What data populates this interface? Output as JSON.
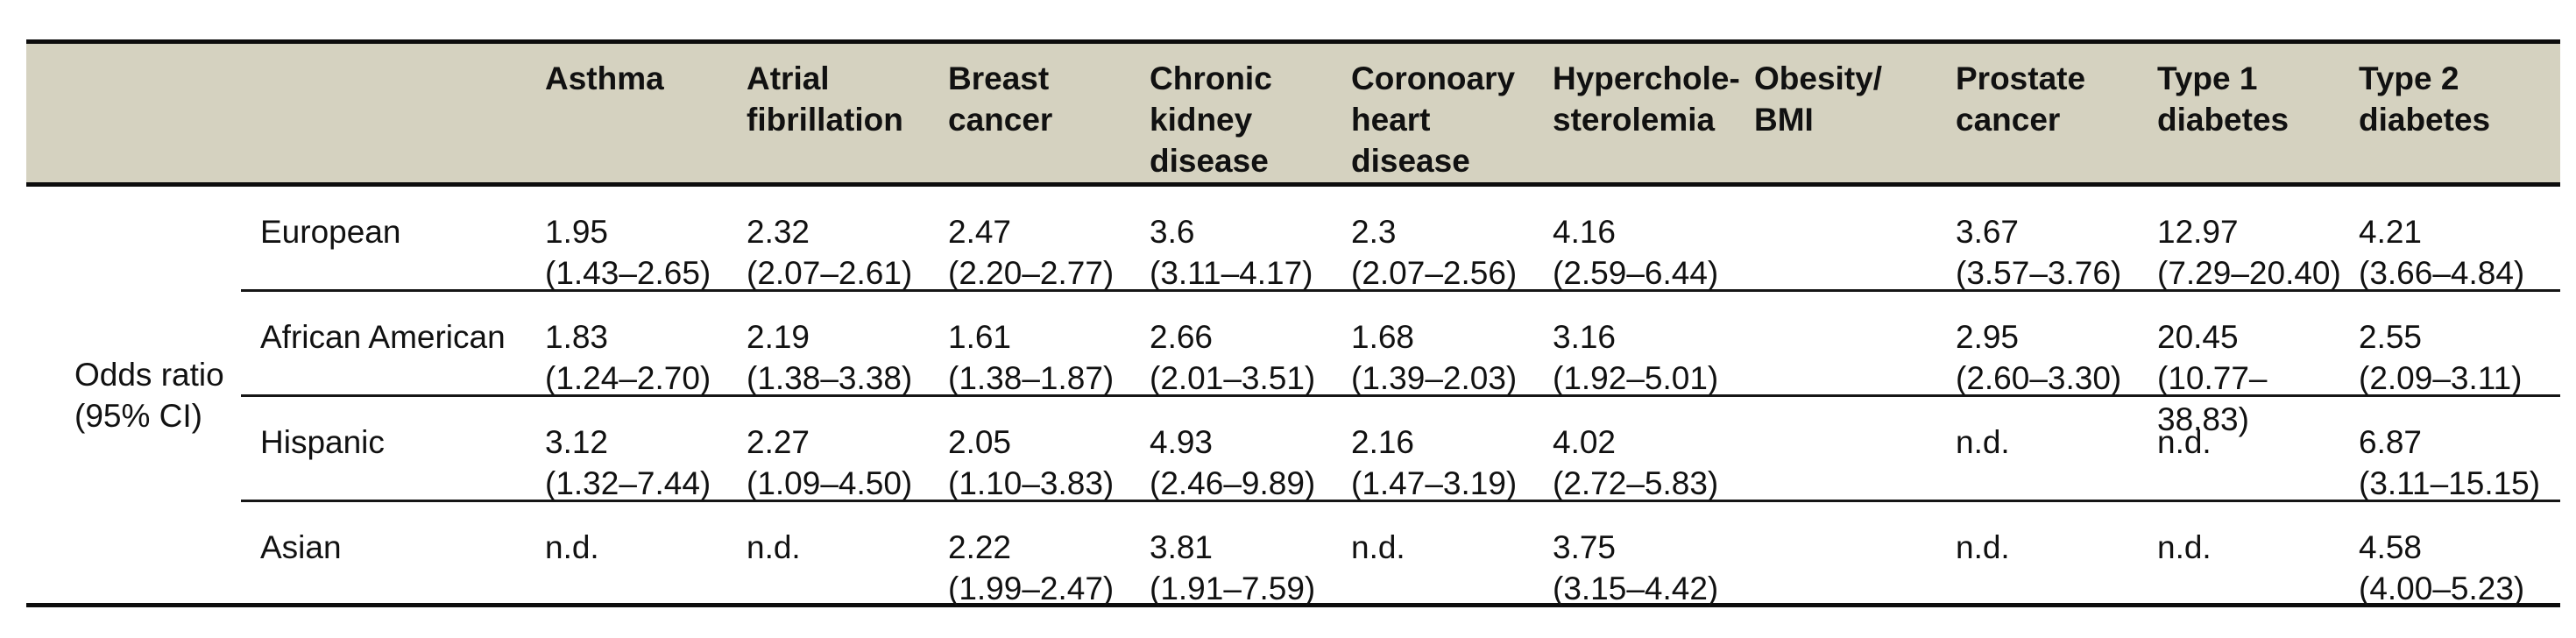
{
  "table": {
    "header_bg": "#d5d2c0",
    "rule_color": "#0d0d0d",
    "stat_label": "Odds ratio\n(95% CI)",
    "columns": [
      {
        "label": "Asthma"
      },
      {
        "label": "Atrial\nfibrillation"
      },
      {
        "label": "Breast\ncancer"
      },
      {
        "label": "Chronic\nkidney\ndisease"
      },
      {
        "label": "Coronoary\nheart\ndisease"
      },
      {
        "label": "Hyperchole-\nsterolemia"
      },
      {
        "label": "Obesity/\nBMI"
      },
      {
        "label": "Prostate\ncancer"
      },
      {
        "label": "Type 1\ndiabetes"
      },
      {
        "label": "Type 2\ndiabetes"
      }
    ],
    "rows": [
      {
        "group": "European",
        "cells": [
          {
            "or": "1.95",
            "ci": "(1.43–2.65)"
          },
          {
            "or": "2.32",
            "ci": "(2.07–2.61)"
          },
          {
            "or": "2.47",
            "ci": "(2.20–2.77)"
          },
          {
            "or": "3.6",
            "ci": "(3.11–4.17)"
          },
          {
            "or": "2.3",
            "ci": "(2.07–2.56)"
          },
          {
            "or": "4.16",
            "ci": "(2.59–6.44)"
          },
          {
            "or": "",
            "ci": ""
          },
          {
            "or": "3.67",
            "ci": "(3.57–3.76)"
          },
          {
            "or": "12.97",
            "ci": "(7.29–20.40)"
          },
          {
            "or": "4.21",
            "ci": "(3.66–4.84)"
          }
        ]
      },
      {
        "group": "African American",
        "cells": [
          {
            "or": "1.83",
            "ci": "(1.24–2.70)"
          },
          {
            "or": "2.19",
            "ci": "(1.38–3.38)"
          },
          {
            "or": "1.61",
            "ci": "(1.38–1.87)"
          },
          {
            "or": "2.66",
            "ci": "(2.01–3.51)"
          },
          {
            "or": "1.68",
            "ci": "(1.39–2.03)"
          },
          {
            "or": "3.16",
            "ci": "(1.92–5.01)"
          },
          {
            "or": "",
            "ci": ""
          },
          {
            "or": "2.95",
            "ci": "(2.60–3.30)"
          },
          {
            "or": "20.45",
            "ci": "(10.77–38.83)"
          },
          {
            "or": "2.55",
            "ci": "(2.09–3.11)"
          }
        ]
      },
      {
        "group": "Hispanic",
        "cells": [
          {
            "or": "3.12",
            "ci": "(1.32–7.44)"
          },
          {
            "or": "2.27",
            "ci": "(1.09–4.50)"
          },
          {
            "or": "2.05",
            "ci": "(1.10–3.83)"
          },
          {
            "or": "4.93",
            "ci": "(2.46–9.89)"
          },
          {
            "or": "2.16",
            "ci": "(1.47–3.19)"
          },
          {
            "or": "4.02",
            "ci": "(2.72–5.83)"
          },
          {
            "or": "",
            "ci": ""
          },
          {
            "or": "n.d.",
            "ci": ""
          },
          {
            "or": "n.d.",
            "ci": ""
          },
          {
            "or": "6.87",
            "ci": "(3.11–15.15)"
          }
        ]
      },
      {
        "group": "Asian",
        "cells": [
          {
            "or": "n.d.",
            "ci": ""
          },
          {
            "or": "n.d.",
            "ci": ""
          },
          {
            "or": "2.22",
            "ci": "(1.99–2.47)"
          },
          {
            "or": "3.81",
            "ci": "(1.91–7.59)"
          },
          {
            "or": "n.d.",
            "ci": ""
          },
          {
            "or": "3.75",
            "ci": "(3.15–4.42)"
          },
          {
            "or": "",
            "ci": ""
          },
          {
            "or": "n.d.",
            "ci": ""
          },
          {
            "or": "n.d.",
            "ci": ""
          },
          {
            "or": "4.58",
            "ci": "(4.00–5.23)"
          }
        ]
      }
    ]
  }
}
